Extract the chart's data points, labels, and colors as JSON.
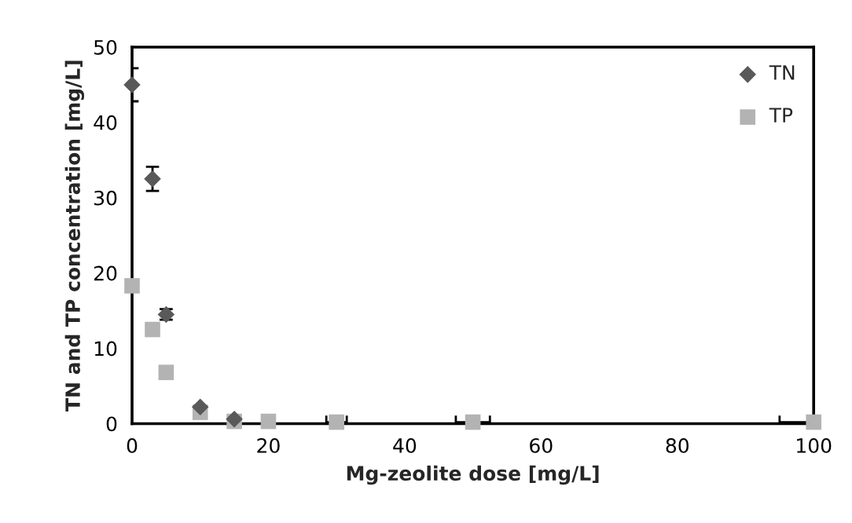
{
  "chart_data": {
    "type": "scatter",
    "xlabel": "Mg-zeolite dose [mg/L]",
    "ylabel": "TN and TP concentration [mg/L]",
    "xlim": [
      0,
      100
    ],
    "xticks": [
      0,
      20,
      40,
      60,
      80,
      100
    ],
    "ylim": [
      0,
      50
    ],
    "yticks": [
      0,
      10,
      20,
      30,
      40,
      50
    ],
    "grid": false,
    "legend": "top right",
    "series": [
      {
        "name": "TN",
        "color": "#595959",
        "marker": "diamond",
        "x": [
          0,
          3,
          5,
          10,
          15
        ],
        "values": [
          45,
          32.5,
          14.5,
          2.2,
          0.6
        ],
        "errors": [
          2.2,
          1.6,
          0.7,
          null,
          null
        ]
      },
      {
        "name": "TP",
        "color": "#b3b3b3",
        "marker": "square",
        "x": [
          0,
          3,
          5,
          10,
          15,
          20,
          30,
          50,
          100
        ],
        "values": [
          18.3,
          12.5,
          6.8,
          1.5,
          0.3,
          0.3,
          0.2,
          0.2,
          0.2
        ],
        "xerrors": [
          null,
          null,
          null,
          null,
          null,
          null,
          1.5,
          2.5,
          [
            95,
            100
          ]
        ]
      }
    ]
  }
}
